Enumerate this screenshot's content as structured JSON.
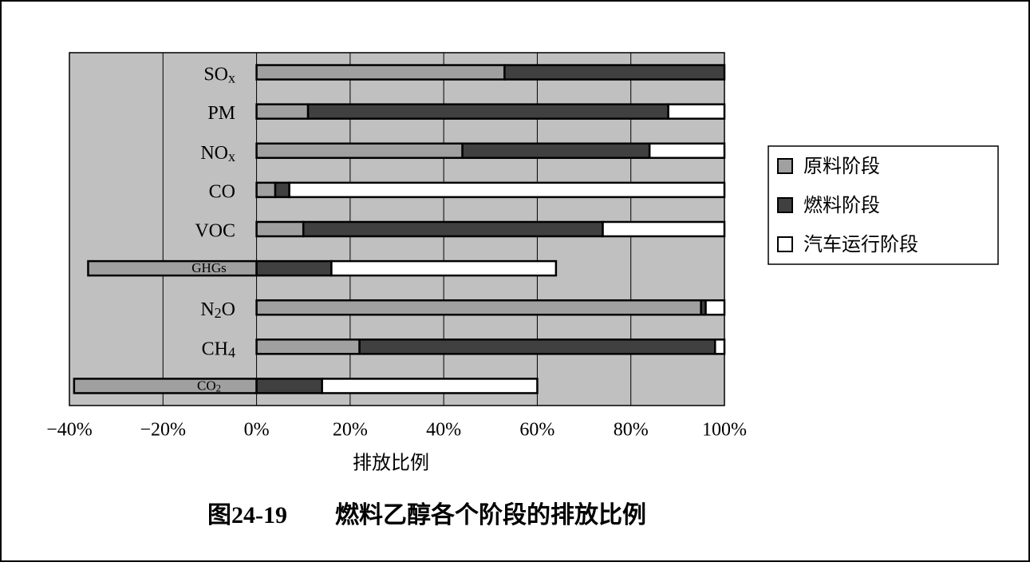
{
  "chart_data": {
    "type": "stacked_barh",
    "categories": [
      "SOx",
      "PM",
      "NOx",
      "CO",
      "VOC",
      "GHGs",
      "N2O",
      "CH4",
      "CO2"
    ],
    "series": [
      {
        "name": "原料阶段",
        "color": "#a0a0a0",
        "values": [
          53,
          11,
          44,
          4,
          10,
          -36,
          95,
          22,
          -39
        ]
      },
      {
        "name": "燃料阶段",
        "color": "#404040",
        "values": [
          47,
          77,
          40,
          3,
          64,
          16,
          1,
          76,
          14
        ]
      },
      {
        "name": "汽车运行阶段",
        "color": "#ffffff",
        "values": [
          0,
          12,
          16,
          93,
          26,
          48,
          4,
          2,
          46
        ]
      }
    ],
    "xlim": [
      -40,
      100
    ],
    "xticks": [
      {
        "value": -40,
        "label": "−40%"
      },
      {
        "value": -20,
        "label": "−20%"
      },
      {
        "value": 0,
        "label": "0%"
      },
      {
        "value": 20,
        "label": "20%"
      },
      {
        "value": 40,
        "label": "40%"
      },
      {
        "value": 60,
        "label": "60%"
      },
      {
        "value": 80,
        "label": "80%"
      },
      {
        "value": 100,
        "label": "100%"
      }
    ],
    "xlabel": "排放比例",
    "caption": "图24-19　　燃料乙醇各个阶段的排放比例",
    "grid": true,
    "legend": "right",
    "background": "#c0c0c0"
  }
}
